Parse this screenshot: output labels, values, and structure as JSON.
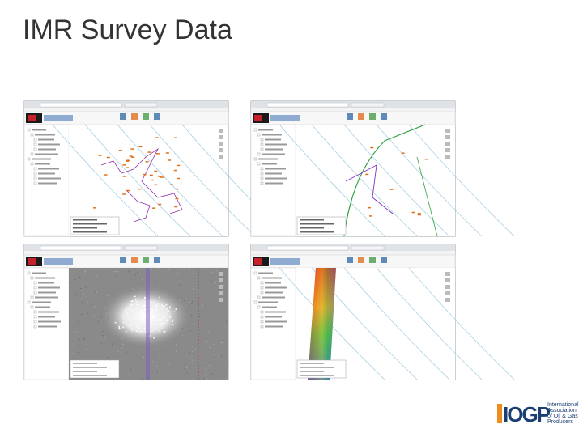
{
  "header": {
    "title": "IMR Survey Data"
  },
  "logo": {
    "mark": "IOGP",
    "lines": [
      "International",
      "Association",
      "of Oil & Gas",
      "Producers"
    ]
  }
}
